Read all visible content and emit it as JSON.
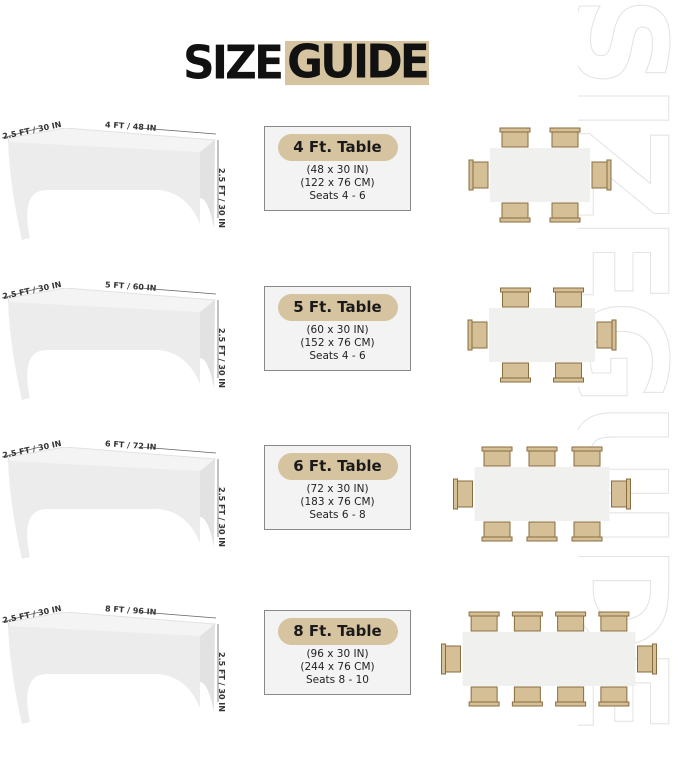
{
  "watermark": "SIZEGUIDE",
  "title": {
    "part1": "SIZE",
    "part2": "GUIDE"
  },
  "colors": {
    "accent": "#d6c4a0",
    "chair": "#d4bf96",
    "chair_edge": "#8a6d3e",
    "table_top": "#f0f0ee"
  },
  "tables": [
    {
      "width_label": "4 FT / 48 IN",
      "depth_label": "2.5 FT / 30 IN",
      "height_label": "2.5 FT / 30 IN",
      "name": "4 Ft. Table",
      "inches": "(48 x 30 IN)",
      "cm": "(122 x 76 CM)",
      "seats": "Seats 4 - 6",
      "chairs_per_long_side": 2
    },
    {
      "width_label": "5 FT / 60 IN",
      "depth_label": "2.5 FT / 30 IN",
      "height_label": "2.5 FT / 30 IN",
      "name": "5 Ft. Table",
      "inches": "(60 x 30 IN)",
      "cm": "(152 x 76 CM)",
      "seats": "Seats 4 - 6",
      "chairs_per_long_side": 2
    },
    {
      "width_label": "6 FT / 72 IN",
      "depth_label": "2.5 FT / 30 IN",
      "height_label": "2.5 FT / 30 IN",
      "name": "6 Ft. Table",
      "inches": "(72 x 30 IN)",
      "cm": "(183 x 76 CM)",
      "seats": "Seats 6 - 8",
      "chairs_per_long_side": 3
    },
    {
      "width_label": "8 FT / 96 IN",
      "depth_label": "2.5 FT / 30 IN",
      "height_label": "2.5 FT / 30 IN",
      "name": "8 Ft. Table",
      "inches": "(96 x 30 IN)",
      "cm": "(244 x 76 CM)",
      "seats": "Seats 8 - 10",
      "chairs_per_long_side": 4
    }
  ]
}
